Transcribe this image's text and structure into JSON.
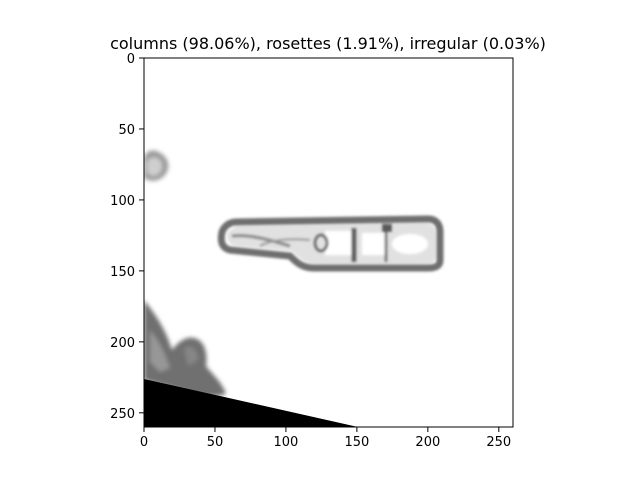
{
  "figure": {
    "title": "columns (98.06%), rosettes (1.91%), irregular (0.03%)"
  },
  "axes": {
    "x_ticks": [
      "0",
      "50",
      "100",
      "150",
      "200",
      "250"
    ],
    "y_ticks": [
      "0",
      "50",
      "100",
      "150",
      "200",
      "250"
    ],
    "x_tick_values": [
      0,
      50,
      100,
      150,
      200,
      250
    ],
    "y_tick_values": [
      0,
      50,
      100,
      150,
      200,
      250
    ],
    "xlim": [
      0,
      260
    ],
    "ylim": [
      260,
      0
    ]
  },
  "image_content": {
    "description_colors": {
      "background": "#ffffff",
      "particle": "#7a7a7a",
      "shadow": "#000000"
    }
  }
}
